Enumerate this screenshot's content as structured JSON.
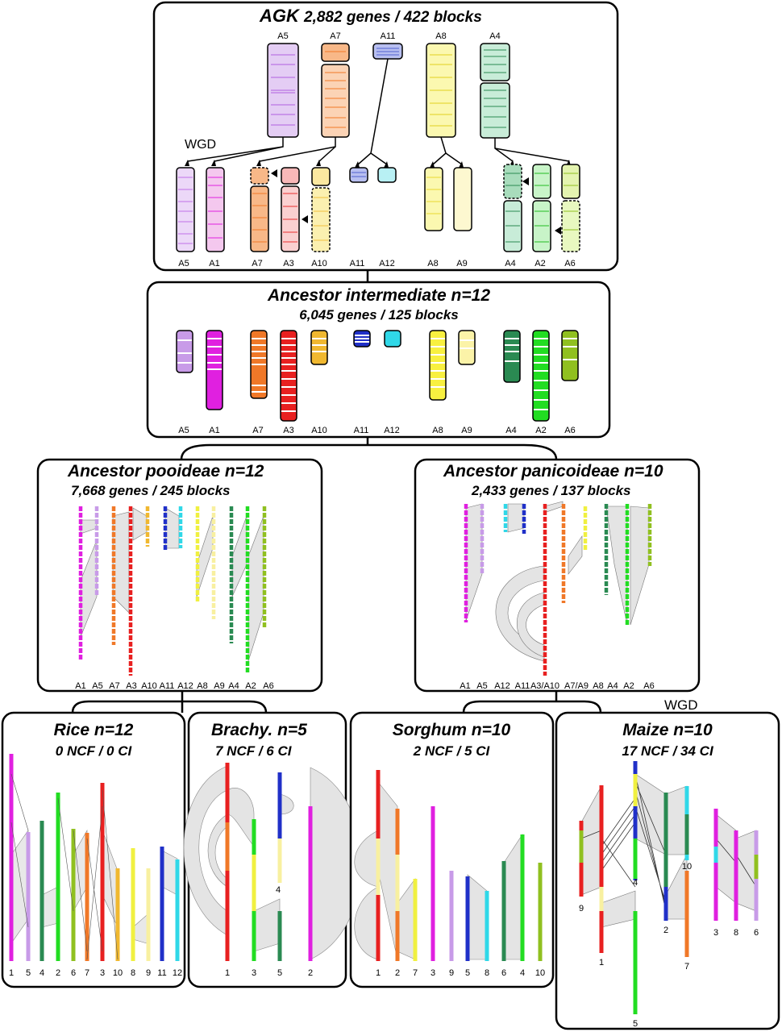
{
  "agk": {
    "title": "AGK",
    "stats": "2,882 genes / 422 blocks",
    "wgd": "WGD",
    "top_labels": [
      "A5",
      "A7",
      "A11",
      "A8",
      "A4"
    ],
    "bottom_labels": [
      "A5",
      "A1",
      "A7",
      "A3",
      "A10",
      "A11",
      "A12",
      "A8",
      "A9",
      "A4",
      "A2",
      "A6"
    ]
  },
  "intermediate": {
    "title": "Ancestor intermediate n=12",
    "stats": "6,045 genes / 125 blocks",
    "labels": [
      "A5",
      "A1",
      "A7",
      "A3",
      "A10",
      "A11",
      "A12",
      "A8",
      "A9",
      "A4",
      "A2",
      "A6"
    ]
  },
  "pooideae": {
    "title": "Ancestor pooideae n=12",
    "stats": "7,668 genes / 245 blocks",
    "labels": [
      "A1",
      "A5",
      "A7",
      "A3",
      "A10",
      "A11",
      "A12",
      "A8",
      "A9",
      "A4",
      "A2",
      "A6"
    ]
  },
  "panicoideae": {
    "title": "Ancestor panicoideae n=10",
    "stats": "2,433 genes / 137 blocks",
    "labels": [
      "A1",
      "A5",
      "A12",
      "A11",
      "A3/A10",
      "A7/A9",
      "A8",
      "A4",
      "A2",
      "A6"
    ]
  },
  "wgd2": "WGD",
  "rice": {
    "title": "Rice n=12",
    "stats": "0 NCF / 0 CI",
    "labels": [
      "1",
      "5",
      "4",
      "2",
      "6",
      "7",
      "3",
      "10",
      "8",
      "9",
      "11",
      "12"
    ]
  },
  "brachy": {
    "title": "Brachy. n=5",
    "stats": "7 NCF / 6 CI",
    "labels": [
      "1",
      "3",
      "5",
      "2",
      "4"
    ]
  },
  "sorghum": {
    "title": "Sorghum n=10",
    "stats": "2 NCF / 5 CI",
    "labels": [
      "1",
      "2",
      "7",
      "3",
      "9",
      "5",
      "8",
      "6",
      "4",
      "10"
    ]
  },
  "maize": {
    "title": "Maize n=10",
    "stats": "17 NCF / 34 CI",
    "labels": [
      "9",
      "1",
      "4",
      "2",
      "5",
      "10",
      "7",
      "3",
      "8",
      "6"
    ]
  },
  "colors": {
    "A1": "#e020e0",
    "A2": "#22dd22",
    "A3": "#e82020",
    "A4": "#2a8a52",
    "A5": "#c89be8",
    "A6": "#90c020",
    "A7": "#f07828",
    "A8": "#f0f040",
    "A9": "#f8f0a0",
    "A10": "#f0b830",
    "A11": "#2030c8",
    "A12": "#30d8e8"
  }
}
